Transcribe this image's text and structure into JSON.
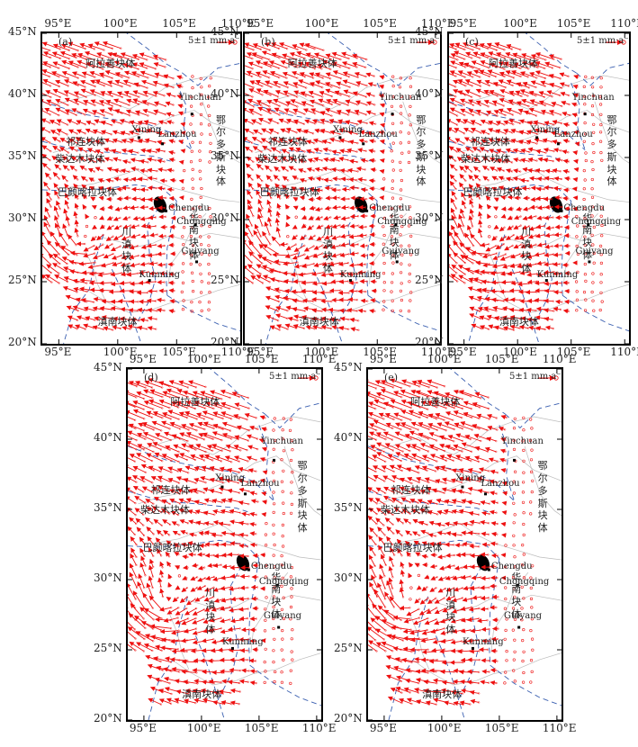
{
  "figure": {
    "colors": {
      "arrow": "#ee1111",
      "boundary_dash": "#3a5fb0",
      "border": "#bbbbbb",
      "frame": "#000000"
    },
    "icons": [
      "velocity-arrow-icon",
      "city-dot-icon",
      "sichuan-basin-icon"
    ],
    "panels": [
      {
        "id": "a",
        "label": "(a)",
        "scale_label": "5±1 mm·a⁻¹",
        "x_ticks": [
          "95°E",
          "100°E",
          "105°E",
          "110°E"
        ],
        "y_ticks": [
          "45°N",
          "40°N",
          "35°N",
          "30°N",
          "25°N",
          "20°N"
        ],
        "cities": [
          "Yinchuan",
          "Xining",
          "Lanzhou",
          "Chengdu",
          "Chongqing",
          "Guiyang",
          "Kunming"
        ],
        "blocks": [
          "阿拉善块体",
          "祁连块体",
          "柴达木块体",
          "巴颜喀拉块体",
          "滇南块体"
        ],
        "vertical_blocks": [
          "鄂尔多斯块体",
          "川滇块体",
          "华南块体"
        ]
      },
      {
        "id": "b",
        "label": "(b)",
        "scale_label": "5±1 mm·a⁻¹",
        "x_ticks": [
          "95°E",
          "100°E",
          "105°E",
          "110°E"
        ],
        "y_ticks": [
          "45°N",
          "40°N",
          "35°N",
          "30°N",
          "25°N",
          "20°N"
        ],
        "cities": [
          "Yinchuan",
          "Xining",
          "Lanzhou",
          "Chengdu",
          "Chongqing",
          "Guiyang",
          "Kunming"
        ],
        "blocks": [
          "阿拉善块体",
          "祁连块体",
          "柴达木块体",
          "巴颜喀拉块体",
          "滇南块体"
        ],
        "vertical_blocks": [
          "鄂尔多斯块体",
          "川滇块体",
          "华南块体"
        ]
      },
      {
        "id": "c",
        "label": "(c)",
        "scale_label": "5±1 mm·a⁻¹",
        "x_ticks": [
          "95°E",
          "100°E",
          "105°E",
          "110°E"
        ],
        "y_ticks": [
          "45°N",
          "40°N",
          "35°N",
          "30°N",
          "25°N",
          "20°N"
        ],
        "cities": [
          "Yinchuan",
          "Xining",
          "Lanzhou",
          "Chengdu",
          "Chongqing",
          "Guiyang",
          "Kunming"
        ],
        "blocks": [
          "阿拉善块体",
          "祁连块体",
          "柴达木块体",
          "巴颜喀拉块体",
          "滇南块体"
        ],
        "vertical_blocks": [
          "鄂尔多斯块体",
          "川滇块体",
          "华南块体"
        ]
      },
      {
        "id": "d",
        "label": "(d)",
        "scale_label": "5±1 mm·a⁻¹",
        "x_ticks": [
          "95°E",
          "100°E",
          "105°E",
          "110°E"
        ],
        "y_ticks": [
          "45°N",
          "40°N",
          "35°N",
          "30°N",
          "25°N",
          "20°N"
        ],
        "cities": [
          "Yinchuan",
          "Xining",
          "Lanzhou",
          "Chengdu",
          "Chongqing",
          "Guiyang",
          "Kunming"
        ],
        "blocks": [
          "阿拉善块体",
          "祁连块体",
          "柴达木块体",
          "巴颜喀拉块体",
          "滇南块体"
        ],
        "vertical_blocks": [
          "鄂尔多斯块体",
          "川滇块体",
          "华南块体"
        ]
      },
      {
        "id": "e",
        "label": "(e)",
        "scale_label": "5±1 mm·a⁻¹",
        "x_ticks": [
          "95°E",
          "100°E",
          "105°E",
          "110°E"
        ],
        "y_ticks": [
          "45°N",
          "40°N",
          "35°N",
          "30°N",
          "25°N",
          "20°N"
        ],
        "cities": [
          "Yinchuan",
          "Xining",
          "Lanzhou",
          "Chengdu",
          "Chongqing",
          "Guiyang",
          "Kunming"
        ],
        "blocks": [
          "阿拉善块体",
          "祁连块体",
          "柴达木块体",
          "巴颜喀拉块体",
          "滇南块体"
        ],
        "vertical_blocks": [
          "鄂尔多斯块体",
          "川滇块体",
          "华南块体"
        ]
      }
    ]
  }
}
